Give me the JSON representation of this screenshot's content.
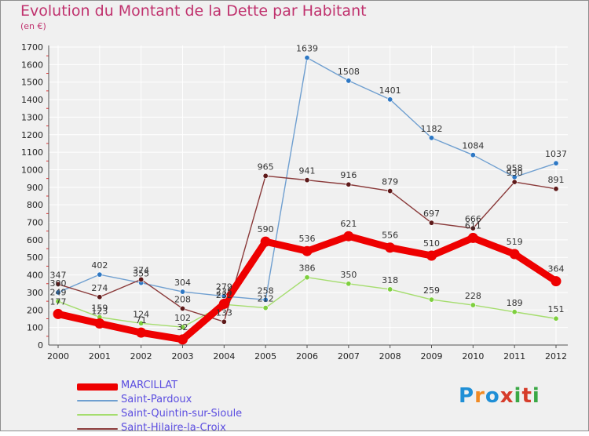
{
  "title": "Evolution du Montant de la Dette par Habitant",
  "subtitle": "(en €)",
  "brand": {
    "text": "Proxiti",
    "letters": [
      "P",
      "r",
      "o",
      "x",
      "i",
      "t",
      "i"
    ],
    "colors": [
      "#1f8fd6",
      "#f08a24",
      "#1f8fd6",
      "#d63c2a",
      "#3aa845",
      "#d63c2a",
      "#3aa845"
    ]
  },
  "chart_data": {
    "type": "line",
    "title": "Evolution du Montant de la Dette par Habitant",
    "ylabel": "(en €)",
    "xlabel": "",
    "x": [
      "2000",
      "2001",
      "2002",
      "2003",
      "2004",
      "2005",
      "2006",
      "2007",
      "2008",
      "2009",
      "2010",
      "2011",
      "2012"
    ],
    "ylim": [
      0,
      1700
    ],
    "yticks": [
      0,
      100,
      200,
      300,
      400,
      500,
      600,
      700,
      800,
      900,
      1000,
      1100,
      1200,
      1300,
      1400,
      1500,
      1600,
      1700
    ],
    "grid": true,
    "legend_position": "bottom-left",
    "series": [
      {
        "name": "Saint-Pardoux",
        "color": "#6f9fd0",
        "marker": "#2e78c4",
        "values": [
          300,
          402,
          355,
          304,
          279,
          258,
          1639,
          1508,
          1401,
          1182,
          1084,
          958,
          1037
        ],
        "labels": [
          "300",
          "402",
          "355",
          "304",
          "279",
          "258",
          "1639",
          "1508",
          "1401",
          "1182",
          "1084",
          "958",
          "1037"
        ]
      },
      {
        "name": "Saint-Quintin-sur-Sioule",
        "color": "#a5dd6e",
        "marker": "#7ecf3e",
        "values": [
          249,
          159,
          124,
          102,
          232,
          212,
          386,
          350,
          318,
          259,
          228,
          189,
          151
        ],
        "labels": [
          "249",
          "159",
          "124",
          "102",
          "232",
          "212",
          "386",
          "350",
          "318",
          "259",
          "228",
          "189",
          "151"
        ]
      },
      {
        "name": "Saint-Hilaire-la-Croix",
        "color": "#8a3a3a",
        "marker": "#5e1a1a",
        "values": [
          347,
          274,
          374,
          208,
          133,
          965,
          941,
          916,
          879,
          697,
          666,
          930,
          891
        ],
        "labels": [
          "347",
          "274",
          "374",
          "208",
          "133",
          "965",
          "941",
          "916",
          "879",
          "697",
          "666",
          "930",
          "891"
        ]
      },
      {
        "name": "MARCILLAT",
        "color": "#ee0000",
        "marker": "#ee0000",
        "values": [
          177,
          123,
          71,
          32,
          235,
          590,
          536,
          621,
          556,
          510,
          611,
          519,
          364
        ],
        "labels": [
          "177",
          "123",
          "71",
          "32",
          "235",
          "590",
          "536",
          "621",
          "556",
          "510",
          "611",
          "519",
          "364"
        ]
      }
    ]
  },
  "legend": [
    {
      "name": "MARCILLAT",
      "color": "#ee0000",
      "label_color": "#5b4de0"
    },
    {
      "name": "Saint-Pardoux",
      "color": "#6f9fd0",
      "label_color": "#5b4de0"
    },
    {
      "name": "Saint-Quintin-sur-Sioule",
      "color": "#a5dd6e",
      "label_color": "#5b4de0"
    },
    {
      "name": "Saint-Hilaire-la-Croix",
      "color": "#8a3a3a",
      "label_color": "#5b4de0"
    }
  ]
}
